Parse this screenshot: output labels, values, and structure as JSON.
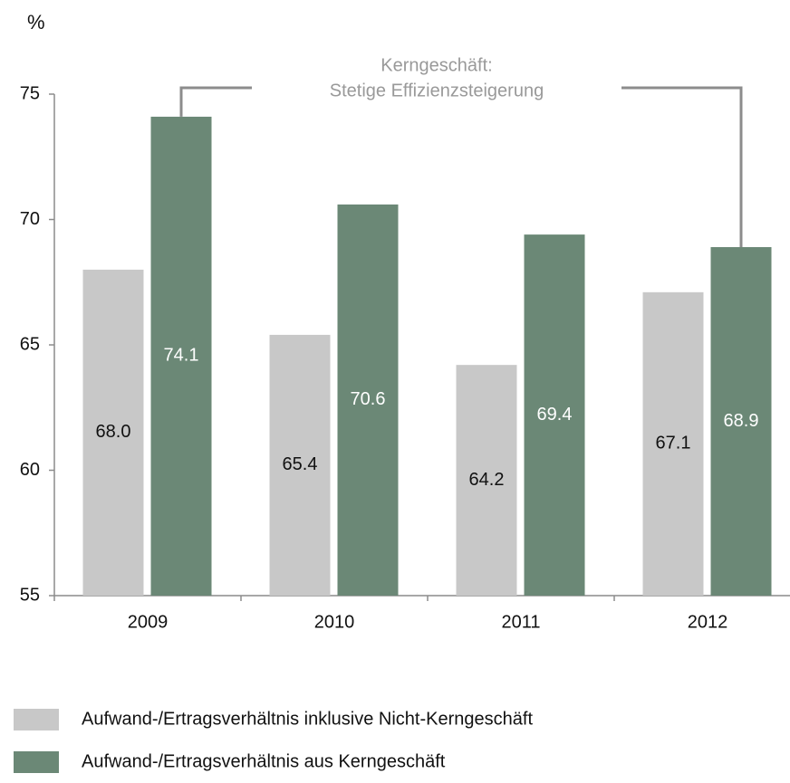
{
  "chart_data": {
    "type": "bar",
    "y_label": "%",
    "annotation": [
      "Kerngeschäft:",
      "Stetige Effizienzsteigerung"
    ],
    "categories": [
      "2009",
      "2010",
      "2011",
      "2012"
    ],
    "series": [
      {
        "name": "Aufwand-/Ertragsverhältnis inklusive Nicht-Kerngeschäft",
        "color": "#c8c8c8",
        "label_color": "#111111",
        "values": [
          68.0,
          65.4,
          64.2,
          67.1
        ],
        "value_labels": [
          "68.0",
          "65.4",
          "64.2",
          "67.1"
        ]
      },
      {
        "name": "Aufwand-/Ertragsverhältnis aus Kerngeschäft",
        "color": "#6b8876",
        "label_color": "#ffffff",
        "values": [
          74.1,
          70.6,
          69.4,
          68.9
        ],
        "value_labels": [
          "74.1",
          "70.6",
          "69.4",
          "68.9"
        ]
      }
    ],
    "ylim": [
      55,
      75
    ],
    "yticks": [
      55,
      60,
      65,
      70,
      75
    ],
    "grid": false
  }
}
